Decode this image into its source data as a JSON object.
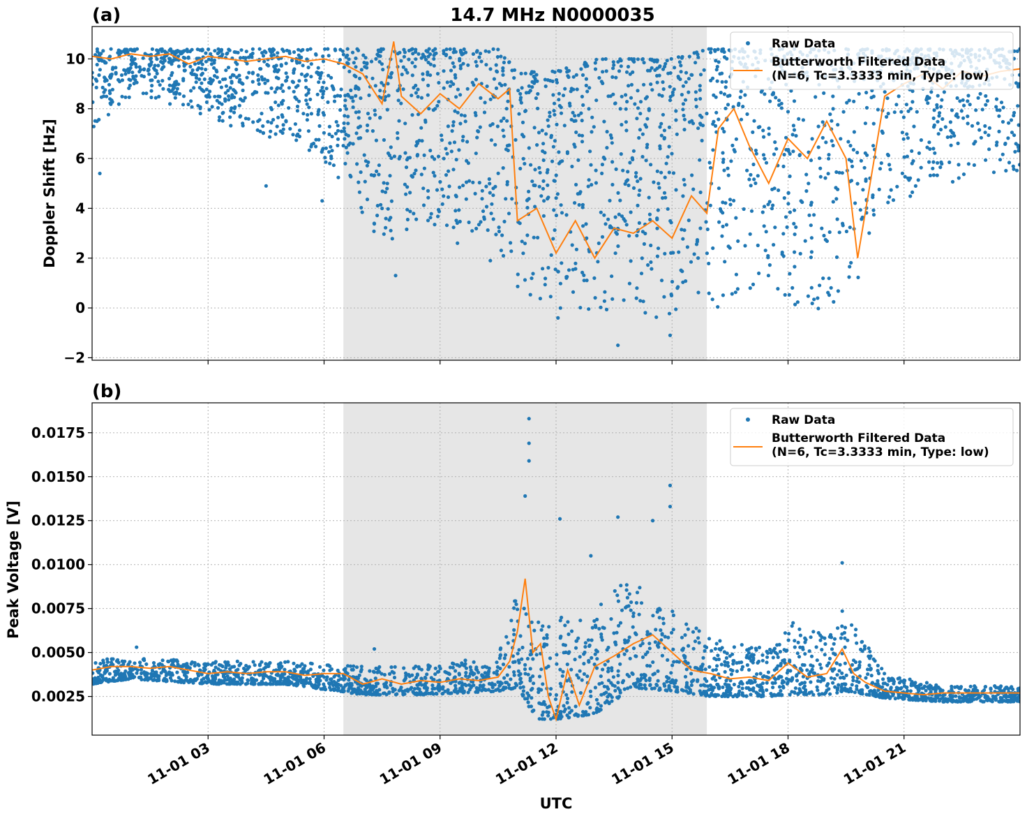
{
  "figure": {
    "title": "14.7 MHz N0000035",
    "xlabel": "UTC",
    "shaded_region": {
      "start_hour": 6.5,
      "end_hour": 15.9,
      "color": "#e6e6e6"
    },
    "x_ticks": [
      {
        "hour": 3,
        "label": "11-01 03"
      },
      {
        "hour": 6,
        "label": "11-01 06"
      },
      {
        "hour": 9,
        "label": "11-01 09"
      },
      {
        "hour": 12,
        "label": "11-01 12"
      },
      {
        "hour": 15,
        "label": "11-01 15"
      },
      {
        "hour": 18,
        "label": "11-01 18"
      },
      {
        "hour": 21,
        "label": "11-01 21"
      }
    ],
    "colors": {
      "raw": "#1f77b4",
      "filtered": "#ff7f0e"
    },
    "legend": {
      "raw": "Raw Data",
      "filtered_line1": "Butterworth Filtered Data",
      "filtered_line2": "(N=6, Tc=3.3333 min, Type: low)"
    }
  },
  "chart_data": [
    {
      "panel": "(a)",
      "type": "scatter",
      "ylabel": "Doppler Shift [Hz]",
      "xlim": [
        0,
        24
      ],
      "ylim": [
        -2.1,
        11.3
      ],
      "y_ticks": [
        {
          "value": 10,
          "label": "10"
        },
        {
          "value": 8,
          "label": "8"
        },
        {
          "value": 6,
          "label": "6"
        },
        {
          "value": 4,
          "label": "4"
        },
        {
          "value": 2,
          "label": "2"
        },
        {
          "value": 0,
          "label": "0"
        },
        {
          "value": -2,
          "label": "−2"
        }
      ],
      "legend_position": "top-right",
      "grid": true,
      "series": [
        {
          "name": "Raw Data",
          "envelope": [
            {
              "x": 0.0,
              "lo": 7.0,
              "hi": 10.4
            },
            {
              "x": 1.0,
              "lo": 8.5,
              "hi": 10.4
            },
            {
              "x": 2.5,
              "lo": 8.0,
              "hi": 10.4
            },
            {
              "x": 4.0,
              "lo": 7.0,
              "hi": 10.4
            },
            {
              "x": 5.5,
              "lo": 6.5,
              "hi": 10.4
            },
            {
              "x": 6.5,
              "lo": 5.0,
              "hi": 10.4
            },
            {
              "x": 7.5,
              "lo": 2.5,
              "hi": 10.4
            },
            {
              "x": 8.5,
              "lo": 3.5,
              "hi": 10.4
            },
            {
              "x": 9.5,
              "lo": 3.0,
              "hi": 10.4
            },
            {
              "x": 10.5,
              "lo": 2.5,
              "hi": 10.4
            },
            {
              "x": 11.0,
              "lo": 0.5,
              "hi": 9.5
            },
            {
              "x": 12.0,
              "lo": 0.0,
              "hi": 9.5
            },
            {
              "x": 13.0,
              "lo": -0.3,
              "hi": 10.0
            },
            {
              "x": 14.0,
              "lo": -0.3,
              "hi": 10.0
            },
            {
              "x": 15.0,
              "lo": -0.5,
              "hi": 10.0
            },
            {
              "x": 15.9,
              "lo": -0.3,
              "hi": 10.4
            },
            {
              "x": 17.0,
              "lo": 0.8,
              "hi": 10.4
            },
            {
              "x": 18.0,
              "lo": 0.0,
              "hi": 10.4
            },
            {
              "x": 19.5,
              "lo": -0.2,
              "hi": 10.4
            },
            {
              "x": 20.5,
              "lo": 4.0,
              "hi": 10.4
            },
            {
              "x": 22.0,
              "lo": 5.0,
              "hi": 10.4
            },
            {
              "x": 24.0,
              "lo": 5.5,
              "hi": 10.4
            }
          ],
          "outliers": [
            {
              "x": 0.2,
              "y": 5.4
            },
            {
              "x": 4.5,
              "y": 4.9
            },
            {
              "x": 5.95,
              "y": 4.3
            },
            {
              "x": 7.85,
              "y": 1.3
            },
            {
              "x": 9.45,
              "y": 2.6
            },
            {
              "x": 13.6,
              "y": -1.5
            },
            {
              "x": 14.95,
              "y": -1.1
            },
            {
              "x": 12.05,
              "y": -0.4
            },
            {
              "x": 10.3,
              "y": 1.9
            }
          ]
        },
        {
          "name": "Butterworth Filtered Data",
          "x": [
            0,
            0.5,
            1,
            1.5,
            2,
            2.5,
            3,
            3.5,
            4,
            4.5,
            5,
            5.5,
            6,
            6.5,
            7,
            7.5,
            7.8,
            8,
            8.5,
            9,
            9.5,
            10,
            10.5,
            10.8,
            11,
            11.5,
            12,
            12.5,
            13,
            13.5,
            14,
            14.5,
            15,
            15.5,
            15.9,
            16.2,
            16.6,
            17,
            17.5,
            18,
            18.5,
            19,
            19.5,
            19.8,
            20.5,
            21,
            21.5,
            22,
            22.5,
            23,
            23.5,
            24
          ],
          "y": [
            10.1,
            10.0,
            10.2,
            10.1,
            10.2,
            9.8,
            10.1,
            10.0,
            9.9,
            10.0,
            10.1,
            9.9,
            10.0,
            9.8,
            9.4,
            8.2,
            10.7,
            8.5,
            7.8,
            8.6,
            8.0,
            9.0,
            8.4,
            8.8,
            3.5,
            4.0,
            2.2,
            3.5,
            2.0,
            3.2,
            3.0,
            3.5,
            2.8,
            4.5,
            3.8,
            7.2,
            8.0,
            6.5,
            5.0,
            6.8,
            6.0,
            7.5,
            6.0,
            2.0,
            8.5,
            9.0,
            9.4,
            8.8,
            9.5,
            9.3,
            9.5,
            9.6
          ]
        }
      ]
    },
    {
      "panel": "(b)",
      "type": "scatter",
      "ylabel": "Peak Voltage [V]",
      "xlim": [
        0,
        24
      ],
      "ylim": [
        0.0003,
        0.0192
      ],
      "y_ticks": [
        {
          "value": 0.0175,
          "label": "0.0175"
        },
        {
          "value": 0.015,
          "label": "0.0150"
        },
        {
          "value": 0.0125,
          "label": "0.0125"
        },
        {
          "value": 0.01,
          "label": "0.0100"
        },
        {
          "value": 0.0075,
          "label": "0.0075"
        },
        {
          "value": 0.005,
          "label": "0.0050"
        },
        {
          "value": 0.0025,
          "label": "0.0025"
        }
      ],
      "legend_position": "top-right",
      "grid": true,
      "series": [
        {
          "name": "Raw Data",
          "envelope": [
            {
              "x": 0.0,
              "lo": 0.0032,
              "hi": 0.0046
            },
            {
              "x": 1.0,
              "lo": 0.0035,
              "hi": 0.0047
            },
            {
              "x": 3.0,
              "lo": 0.0032,
              "hi": 0.0045
            },
            {
              "x": 5.0,
              "lo": 0.0032,
              "hi": 0.0045
            },
            {
              "x": 7.0,
              "lo": 0.0026,
              "hi": 0.0042
            },
            {
              "x": 8.5,
              "lo": 0.0026,
              "hi": 0.0043
            },
            {
              "x": 10.5,
              "lo": 0.0028,
              "hi": 0.0048
            },
            {
              "x": 11.0,
              "lo": 0.003,
              "hi": 0.0085
            },
            {
              "x": 11.5,
              "lo": 0.0012,
              "hi": 0.007
            },
            {
              "x": 12.0,
              "lo": 0.0012,
              "hi": 0.0075
            },
            {
              "x": 13.0,
              "lo": 0.0015,
              "hi": 0.0075
            },
            {
              "x": 14.0,
              "lo": 0.003,
              "hi": 0.0095
            },
            {
              "x": 15.0,
              "lo": 0.0028,
              "hi": 0.0075
            },
            {
              "x": 16.0,
              "lo": 0.0025,
              "hi": 0.0058
            },
            {
              "x": 17.5,
              "lo": 0.0025,
              "hi": 0.0052
            },
            {
              "x": 18.0,
              "lo": 0.0026,
              "hi": 0.0068
            },
            {
              "x": 19.0,
              "lo": 0.0026,
              "hi": 0.006
            },
            {
              "x": 19.5,
              "lo": 0.0028,
              "hi": 0.0078
            },
            {
              "x": 20.5,
              "lo": 0.0024,
              "hi": 0.0038
            },
            {
              "x": 22.0,
              "lo": 0.0022,
              "hi": 0.0031
            },
            {
              "x": 24.0,
              "lo": 0.0022,
              "hi": 0.0031
            }
          ],
          "outliers": [
            {
              "x": 11.3,
              "y": 0.0183
            },
            {
              "x": 11.3,
              "y": 0.0169
            },
            {
              "x": 11.3,
              "y": 0.0159
            },
            {
              "x": 11.2,
              "y": 0.0139
            },
            {
              "x": 12.1,
              "y": 0.0126
            },
            {
              "x": 13.6,
              "y": 0.0127
            },
            {
              "x": 14.95,
              "y": 0.0145
            },
            {
              "x": 14.95,
              "y": 0.0133
            },
            {
              "x": 12.9,
              "y": 0.0105
            },
            {
              "x": 14.5,
              "y": 0.0125
            },
            {
              "x": 19.4,
              "y": 0.0101
            },
            {
              "x": 1.15,
              "y": 0.0053
            },
            {
              "x": 7.3,
              "y": 0.0052
            }
          ]
        },
        {
          "name": "Butterworth Filtered Data",
          "x": [
            0,
            0.5,
            1,
            1.5,
            2,
            2.5,
            3,
            3.5,
            4,
            4.5,
            5,
            5.5,
            6,
            6.5,
            7,
            7.5,
            8,
            8.5,
            9,
            9.5,
            10,
            10.5,
            10.8,
            11,
            11.2,
            11.4,
            11.6,
            11.8,
            12,
            12.3,
            12.6,
            13,
            13.5,
            14,
            14.5,
            15,
            15.5,
            16,
            16.5,
            17,
            17.5,
            18,
            18.5,
            19,
            19.4,
            19.7,
            20,
            20.5,
            21,
            21.5,
            22,
            22.5,
            23,
            23.5,
            24
          ],
          "y": [
            0.004,
            0.0042,
            0.0042,
            0.0041,
            0.0042,
            0.004,
            0.0038,
            0.0039,
            0.0038,
            0.0039,
            0.0039,
            0.0037,
            0.0038,
            0.0038,
            0.0032,
            0.0035,
            0.0032,
            0.0034,
            0.0033,
            0.0035,
            0.0034,
            0.0036,
            0.0045,
            0.0062,
            0.0092,
            0.005,
            0.0055,
            0.0025,
            0.0012,
            0.004,
            0.002,
            0.0042,
            0.0048,
            0.0055,
            0.006,
            0.005,
            0.004,
            0.0038,
            0.0035,
            0.0036,
            0.0034,
            0.0044,
            0.0036,
            0.0038,
            0.0052,
            0.0038,
            0.0033,
            0.0028,
            0.0027,
            0.0026,
            0.0027,
            0.0027,
            0.0027,
            0.0027,
            0.0027
          ]
        }
      ]
    }
  ]
}
